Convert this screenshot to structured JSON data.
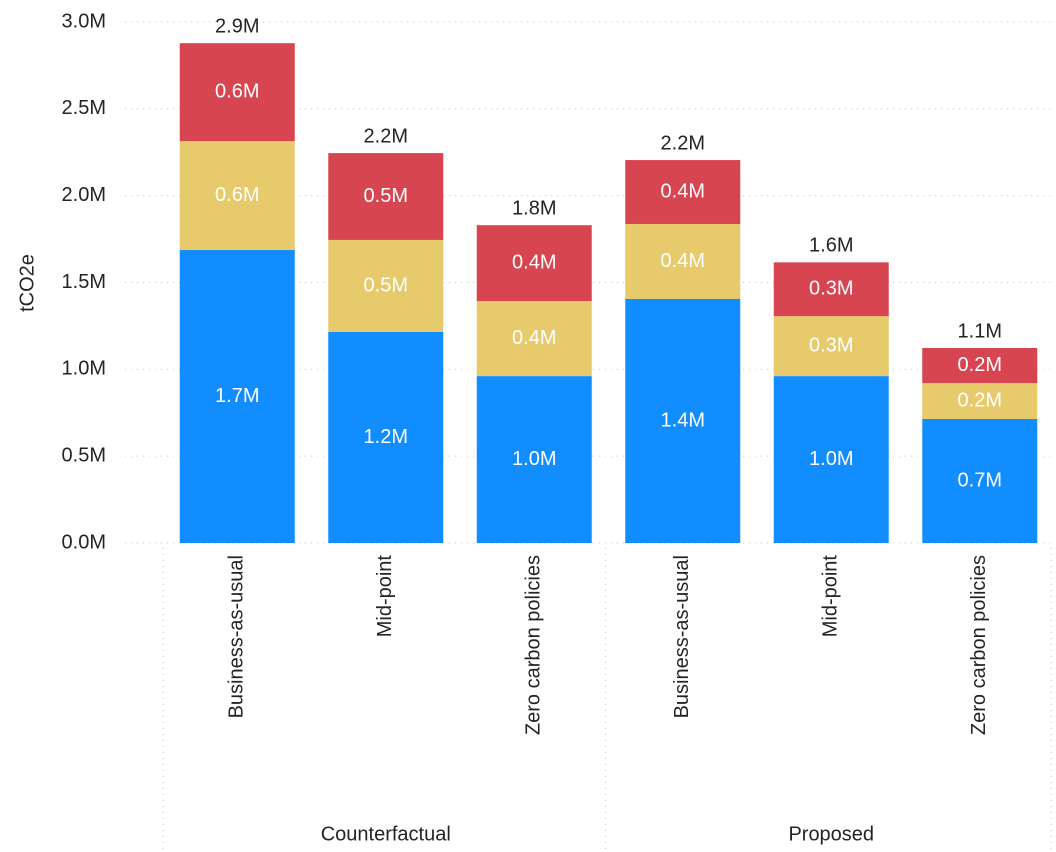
{
  "chart_data": {
    "type": "stacked_bar",
    "y_label": "tCO2e",
    "groups": [
      {
        "label": "Counterfactual",
        "categories": [
          "Business-as-usual",
          "Mid-point",
          "Zero carbon policies"
        ]
      },
      {
        "label": "Proposed",
        "categories": [
          "Business-as-usual",
          "Mid-point",
          "Zero carbon policies"
        ]
      }
    ],
    "series": [
      {
        "color": "#118dff",
        "values": [
          1687000,
          1215000,
          961000,
          1405000,
          961000,
          714000
        ],
        "value_labels": [
          "1.7M",
          "1.2M",
          "1.0M",
          "1.4M",
          "1.0M",
          "0.7M"
        ]
      },
      {
        "color": "#e6ca6b",
        "values": [
          627000,
          530000,
          432000,
          432000,
          345000,
          207000
        ],
        "value_labels": [
          "0.6M",
          "0.5M",
          "0.4M",
          "0.4M",
          "0.3M",
          "0.2M"
        ]
      },
      {
        "color": "#d64550",
        "values": [
          564000,
          500000,
          437000,
          368000,
          310000,
          202000
        ],
        "value_labels": [
          "0.6M",
          "0.5M",
          "0.4M",
          "0.4M",
          "0.3M",
          "0.2M"
        ]
      }
    ],
    "totals": [
      2878000,
      2245000,
      1830000,
      2205000,
      1616000,
      1123000
    ],
    "total_labels": [
      "2.9M",
      "2.2M",
      "1.8M",
      "2.2M",
      "1.6M",
      "1.1M"
    ],
    "ylim": [
      0,
      3000000
    ],
    "yticks": [
      {
        "value": 0,
        "label": "0.0M"
      },
      {
        "value": 500000,
        "label": "0.5M"
      },
      {
        "value": 1000000,
        "label": "1.0M"
      },
      {
        "value": 1500000,
        "label": "1.5M"
      },
      {
        "value": 2000000,
        "label": "2.0M"
      },
      {
        "value": 2500000,
        "label": "2.5M"
      },
      {
        "value": 3000000,
        "label": "3.0M"
      }
    ],
    "grid": true
  }
}
